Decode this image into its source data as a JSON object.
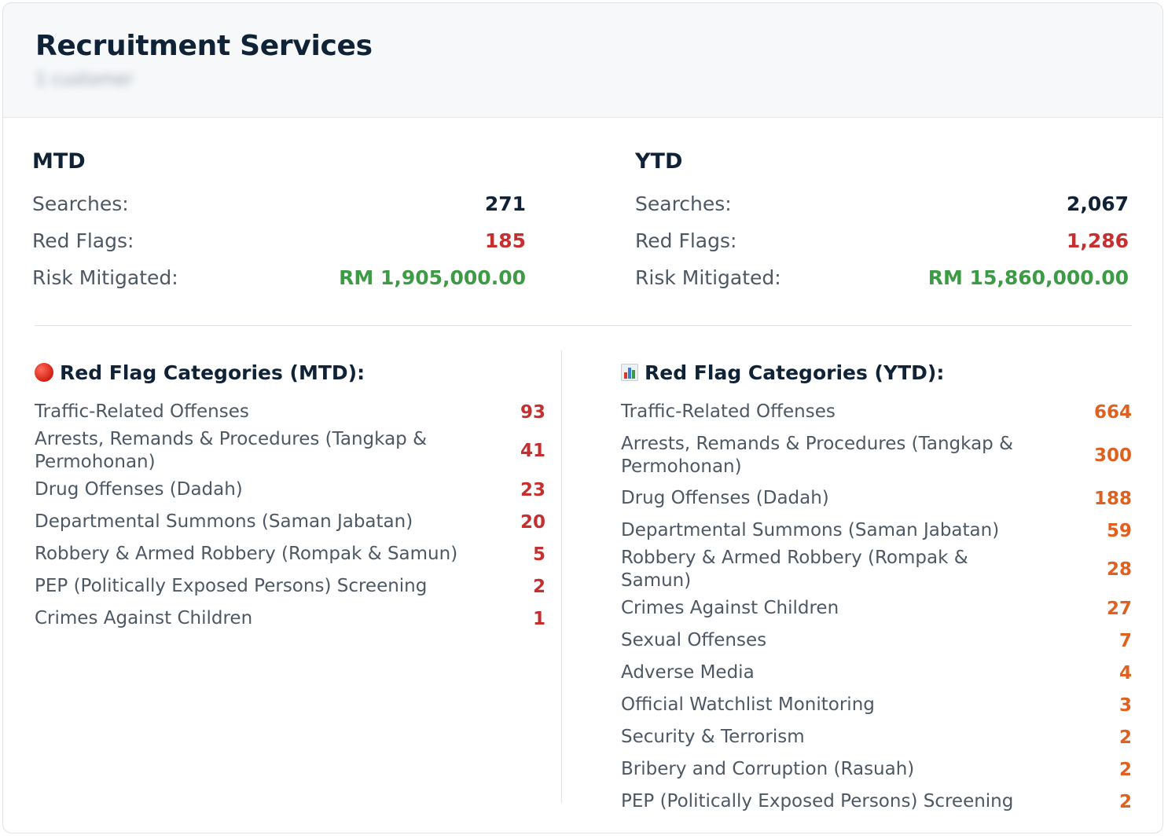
{
  "header": {
    "title": "Recruitment Services",
    "subtitle": "1 customer"
  },
  "mtd": {
    "heading": "MTD",
    "searches_label": "Searches:",
    "searches": "271",
    "red_flags_label": "Red Flags:",
    "red_flags": "185",
    "risk_label": "Risk Mitigated:",
    "risk": "RM 1,905,000.00"
  },
  "ytd": {
    "heading": "YTD",
    "searches_label": "Searches:",
    "searches": "2,067",
    "red_flags_label": "Red Flags:",
    "red_flags": "1,286",
    "risk_label": "Risk Mitigated:",
    "risk": "RM 15,860,000.00"
  },
  "colors": {
    "red": "#c62f2f",
    "green": "#3d9a45",
    "orange": "#e0601f"
  },
  "categories_mtd": {
    "icon": "red-circle-icon",
    "heading": "Red Flag Categories (MTD):",
    "items": [
      {
        "label": "Traffic-Related Offenses",
        "count": "93"
      },
      {
        "label": "Arrests, Remands & Procedures (Tangkap & Permohonan)",
        "count": "41"
      },
      {
        "label": "Drug Offenses (Dadah)",
        "count": "23"
      },
      {
        "label": "Departmental Summons (Saman Jabatan)",
        "count": "20"
      },
      {
        "label": "Robbery & Armed Robbery (Rompak & Samun)",
        "count": "5"
      },
      {
        "label": "PEP (Politically Exposed Persons) Screening",
        "count": "2"
      },
      {
        "label": "Crimes Against Children",
        "count": "1"
      }
    ]
  },
  "categories_ytd": {
    "icon": "bar-chart-icon",
    "heading": "Red Flag Categories (YTD):",
    "items": [
      {
        "label": "Traffic-Related Offenses",
        "count": "664"
      },
      {
        "label": "Arrests, Remands & Procedures (Tangkap & Permohonan)",
        "count": "300"
      },
      {
        "label": "Drug Offenses (Dadah)",
        "count": "188"
      },
      {
        "label": "Departmental Summons (Saman Jabatan)",
        "count": "59"
      },
      {
        "label": "Robbery & Armed Robbery (Rompak & Samun)",
        "count": "28"
      },
      {
        "label": "Crimes Against Children",
        "count": "27"
      },
      {
        "label": "Sexual Offenses",
        "count": "7"
      },
      {
        "label": "Adverse Media",
        "count": "4"
      },
      {
        "label": "Official Watchlist Monitoring",
        "count": "3"
      },
      {
        "label": "Security & Terrorism",
        "count": "2"
      },
      {
        "label": "Bribery and Corruption (Rasuah)",
        "count": "2"
      },
      {
        "label": "PEP (Politically Exposed Persons) Screening",
        "count": "2"
      }
    ]
  }
}
